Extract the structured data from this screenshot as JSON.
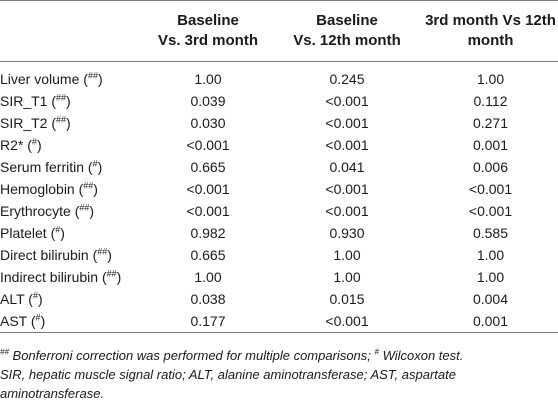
{
  "headers": [
    "",
    "Baseline\nVs. 3rd month",
    "Baseline\nVs. 12th month",
    "3rd month Vs 12th\nmonth"
  ],
  "header_lines": [
    [
      "Baseline",
      "Vs. 3rd month"
    ],
    [
      "Baseline",
      "Vs. 12th month"
    ],
    [
      "3rd month Vs 12th",
      "month"
    ]
  ],
  "rows": [
    {
      "label": "Liver volume",
      "mark": "##",
      "v1": "1.00",
      "v2": "0.245",
      "v3": "1.00"
    },
    {
      "label": "SIR_T1",
      "mark": "##",
      "v1": "0.039",
      "v2": "<0.001",
      "v3": "0.112"
    },
    {
      "label": "SIR_T2",
      "mark": "##",
      "v1": "0.030",
      "v2": "<0.001",
      "v3": "0.271"
    },
    {
      "label": "R2*",
      "mark": "#",
      "v1": "<0.001",
      "v2": "<0.001",
      "v3": "0.001"
    },
    {
      "label": "Serum ferritin",
      "mark": "#",
      "v1": "0.665",
      "v2": "0.041",
      "v3": "0.006"
    },
    {
      "label": "Hemoglobin",
      "mark": "##",
      "v1": "<0.001",
      "v2": "<0.001",
      "v3": "<0.001"
    },
    {
      "label": "Erythrocyte",
      "mark": "##",
      "v1": "<0.001",
      "v2": "<0.001",
      "v3": "<0.001"
    },
    {
      "label": "Platelet",
      "mark": "#",
      "v1": "0.982",
      "v2": "0.930",
      "v3": "0.585"
    },
    {
      "label": "Direct bilirubin",
      "mark": "##",
      "v1": "0.665",
      "v2": "1.00",
      "v3": "1.00"
    },
    {
      "label": "Indirect bilirubin",
      "mark": "##",
      "v1": "1.00",
      "v2": "1.00",
      "v3": "1.00"
    },
    {
      "label": "ALT",
      "mark": "#",
      "v1": "0.038",
      "v2": "0.015",
      "v3": "0.004"
    },
    {
      "label": "AST",
      "mark": "#",
      "v1": "0.177",
      "v2": "<0.001",
      "v3": "0.001"
    }
  ],
  "footnote": {
    "mark1": "##",
    "text1": " Bonferroni correction was performed for multiple comparisons; ",
    "mark2": "#",
    "text2": " Wilcoxon test.",
    "line2": "SIR, hepatic muscle signal ratio; ALT, alanine aminotransferase; AST, aspartate",
    "line3": "aminotransferase."
  }
}
